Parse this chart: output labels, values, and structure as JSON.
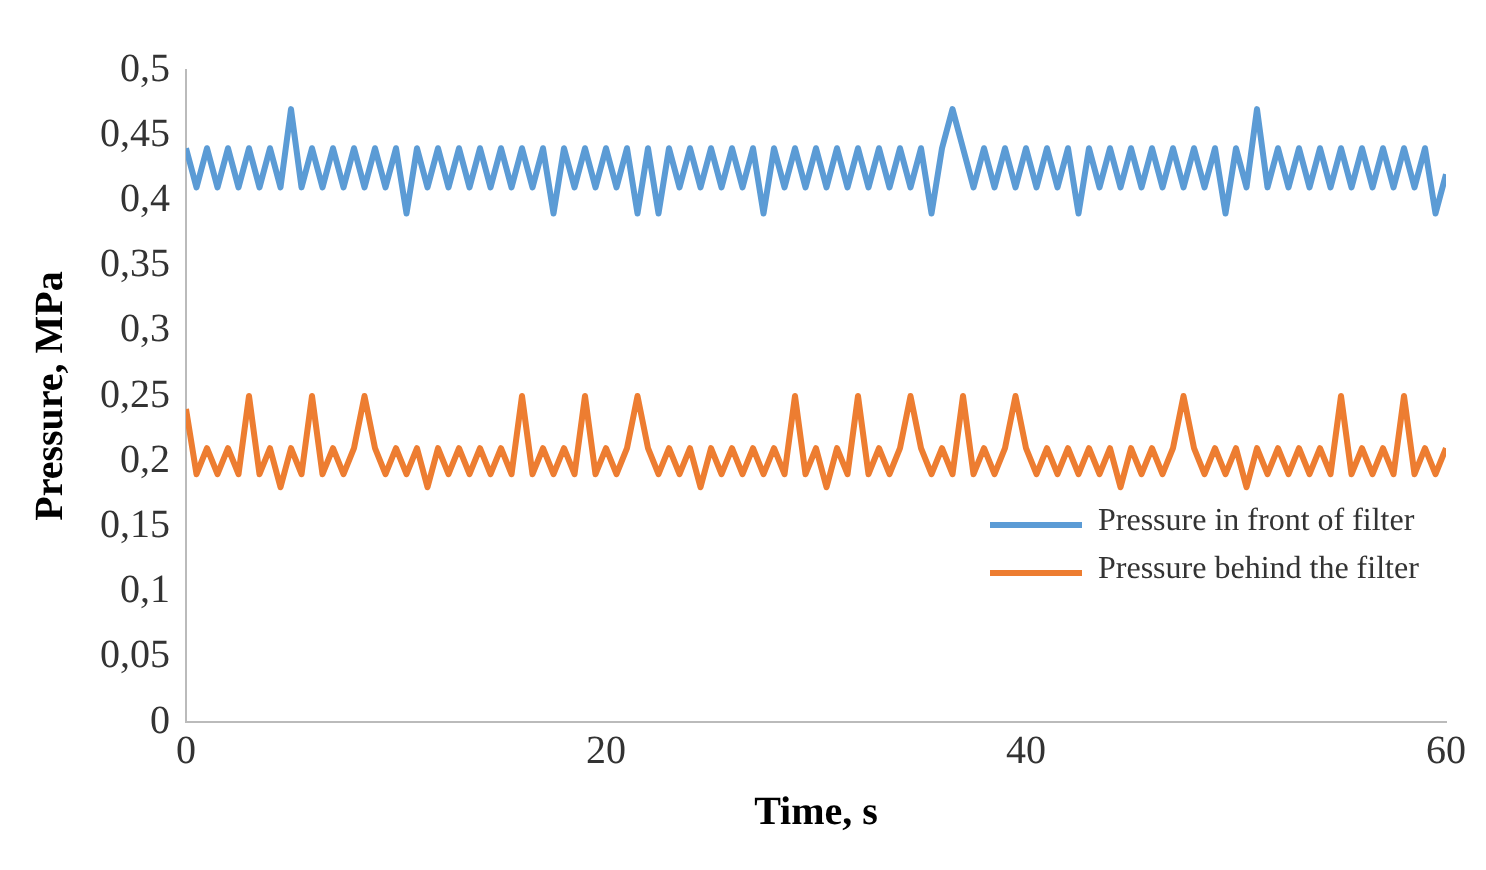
{
  "chart_data": {
    "type": "line",
    "xlabel": "Time, s",
    "ylabel": "Pressure, MPa",
    "x": [
      0,
      0.5,
      1,
      1.5,
      2,
      2.5,
      3,
      3.5,
      4,
      4.5,
      5,
      5.5,
      6,
      6.5,
      7,
      7.5,
      8,
      8.5,
      9,
      9.5,
      10,
      10.5,
      11,
      11.5,
      12,
      12.5,
      13,
      13.5,
      14,
      14.5,
      15,
      15.5,
      16,
      16.5,
      17,
      17.5,
      18,
      18.5,
      19,
      19.5,
      20,
      20.5,
      21,
      21.5,
      22,
      22.5,
      23,
      23.5,
      24,
      24.5,
      25,
      25.5,
      26,
      26.5,
      27,
      27.5,
      28,
      28.5,
      29,
      29.5,
      30,
      30.5,
      31,
      31.5,
      32,
      32.5,
      33,
      33.5,
      34,
      34.5,
      35,
      35.5,
      36,
      36.5,
      37,
      37.5,
      38,
      38.5,
      39,
      39.5,
      40,
      40.5,
      41,
      41.5,
      42,
      42.5,
      43,
      43.5,
      44,
      44.5,
      45,
      45.5,
      46,
      46.5,
      47,
      47.5,
      48,
      48.5,
      49,
      49.5,
      50,
      50.5,
      51,
      51.5,
      52,
      52.5,
      53,
      53.5,
      54,
      54.5,
      55,
      55.5,
      56,
      56.5,
      57,
      57.5,
      58,
      58.5,
      59,
      59.5,
      60
    ],
    "series": [
      {
        "name": "Pressure in front of filter",
        "color": "#5b9bd5",
        "values": [
          0.44,
          0.41,
          0.44,
          0.41,
          0.44,
          0.41,
          0.44,
          0.41,
          0.44,
          0.41,
          0.47,
          0.41,
          0.44,
          0.41,
          0.44,
          0.41,
          0.44,
          0.41,
          0.44,
          0.41,
          0.44,
          0.39,
          0.44,
          0.41,
          0.44,
          0.41,
          0.44,
          0.41,
          0.44,
          0.41,
          0.44,
          0.41,
          0.44,
          0.41,
          0.44,
          0.39,
          0.44,
          0.41,
          0.44,
          0.41,
          0.44,
          0.41,
          0.44,
          0.39,
          0.44,
          0.39,
          0.44,
          0.41,
          0.44,
          0.41,
          0.44,
          0.41,
          0.44,
          0.41,
          0.44,
          0.39,
          0.44,
          0.41,
          0.44,
          0.41,
          0.44,
          0.41,
          0.44,
          0.41,
          0.44,
          0.41,
          0.44,
          0.41,
          0.44,
          0.41,
          0.44,
          0.39,
          0.44,
          0.47,
          0.44,
          0.41,
          0.44,
          0.41,
          0.44,
          0.41,
          0.44,
          0.41,
          0.44,
          0.41,
          0.44,
          0.39,
          0.44,
          0.41,
          0.44,
          0.41,
          0.44,
          0.41,
          0.44,
          0.41,
          0.44,
          0.41,
          0.44,
          0.41,
          0.44,
          0.39,
          0.44,
          0.41,
          0.47,
          0.41,
          0.44,
          0.41,
          0.44,
          0.41,
          0.44,
          0.41,
          0.44,
          0.41,
          0.44,
          0.41,
          0.44,
          0.41,
          0.44,
          0.41,
          0.44,
          0.39,
          0.42
        ]
      },
      {
        "name": "Pressure behind the filter",
        "color": "#ed7d31",
        "values": [
          0.24,
          0.19,
          0.21,
          0.19,
          0.21,
          0.19,
          0.25,
          0.19,
          0.21,
          0.18,
          0.21,
          0.19,
          0.25,
          0.19,
          0.21,
          0.19,
          0.21,
          0.25,
          0.21,
          0.19,
          0.21,
          0.19,
          0.21,
          0.18,
          0.21,
          0.19,
          0.21,
          0.19,
          0.21,
          0.19,
          0.21,
          0.19,
          0.25,
          0.19,
          0.21,
          0.19,
          0.21,
          0.19,
          0.25,
          0.19,
          0.21,
          0.19,
          0.21,
          0.25,
          0.21,
          0.19,
          0.21,
          0.19,
          0.21,
          0.18,
          0.21,
          0.19,
          0.21,
          0.19,
          0.21,
          0.19,
          0.21,
          0.19,
          0.25,
          0.19,
          0.21,
          0.18,
          0.21,
          0.19,
          0.25,
          0.19,
          0.21,
          0.19,
          0.21,
          0.25,
          0.21,
          0.19,
          0.21,
          0.19,
          0.25,
          0.19,
          0.21,
          0.19,
          0.21,
          0.25,
          0.21,
          0.19,
          0.21,
          0.19,
          0.21,
          0.19,
          0.21,
          0.19,
          0.21,
          0.18,
          0.21,
          0.19,
          0.21,
          0.19,
          0.21,
          0.25,
          0.21,
          0.19,
          0.21,
          0.19,
          0.21,
          0.18,
          0.21,
          0.19,
          0.21,
          0.19,
          0.21,
          0.19,
          0.21,
          0.19,
          0.25,
          0.19,
          0.21,
          0.19,
          0.21,
          0.19,
          0.25,
          0.19,
          0.21,
          0.19,
          0.21
        ]
      }
    ],
    "xlim": [
      0,
      60
    ],
    "xticks": [
      0,
      20,
      40,
      60
    ],
    "ylim": [
      0,
      0.5
    ],
    "yticks": [
      0,
      {
        "value": 0.05,
        "label": "0,05"
      },
      {
        "value": 0.1,
        "label": "0,1"
      },
      {
        "value": 0.15,
        "label": "0,15"
      },
      {
        "value": 0.2,
        "label": "0,2"
      },
      {
        "value": 0.25,
        "label": "0,25"
      },
      {
        "value": 0.3,
        "label": "0,3"
      },
      {
        "value": 0.35,
        "label": "0,35"
      },
      {
        "value": 0.4,
        "label": "0,4"
      },
      {
        "value": 0.45,
        "label": "0,45"
      },
      {
        "value": 0.5,
        "label": "0,5"
      }
    ],
    "grid": false,
    "legend": "bottom right",
    "marker": "none",
    "line_style": "solid"
  }
}
